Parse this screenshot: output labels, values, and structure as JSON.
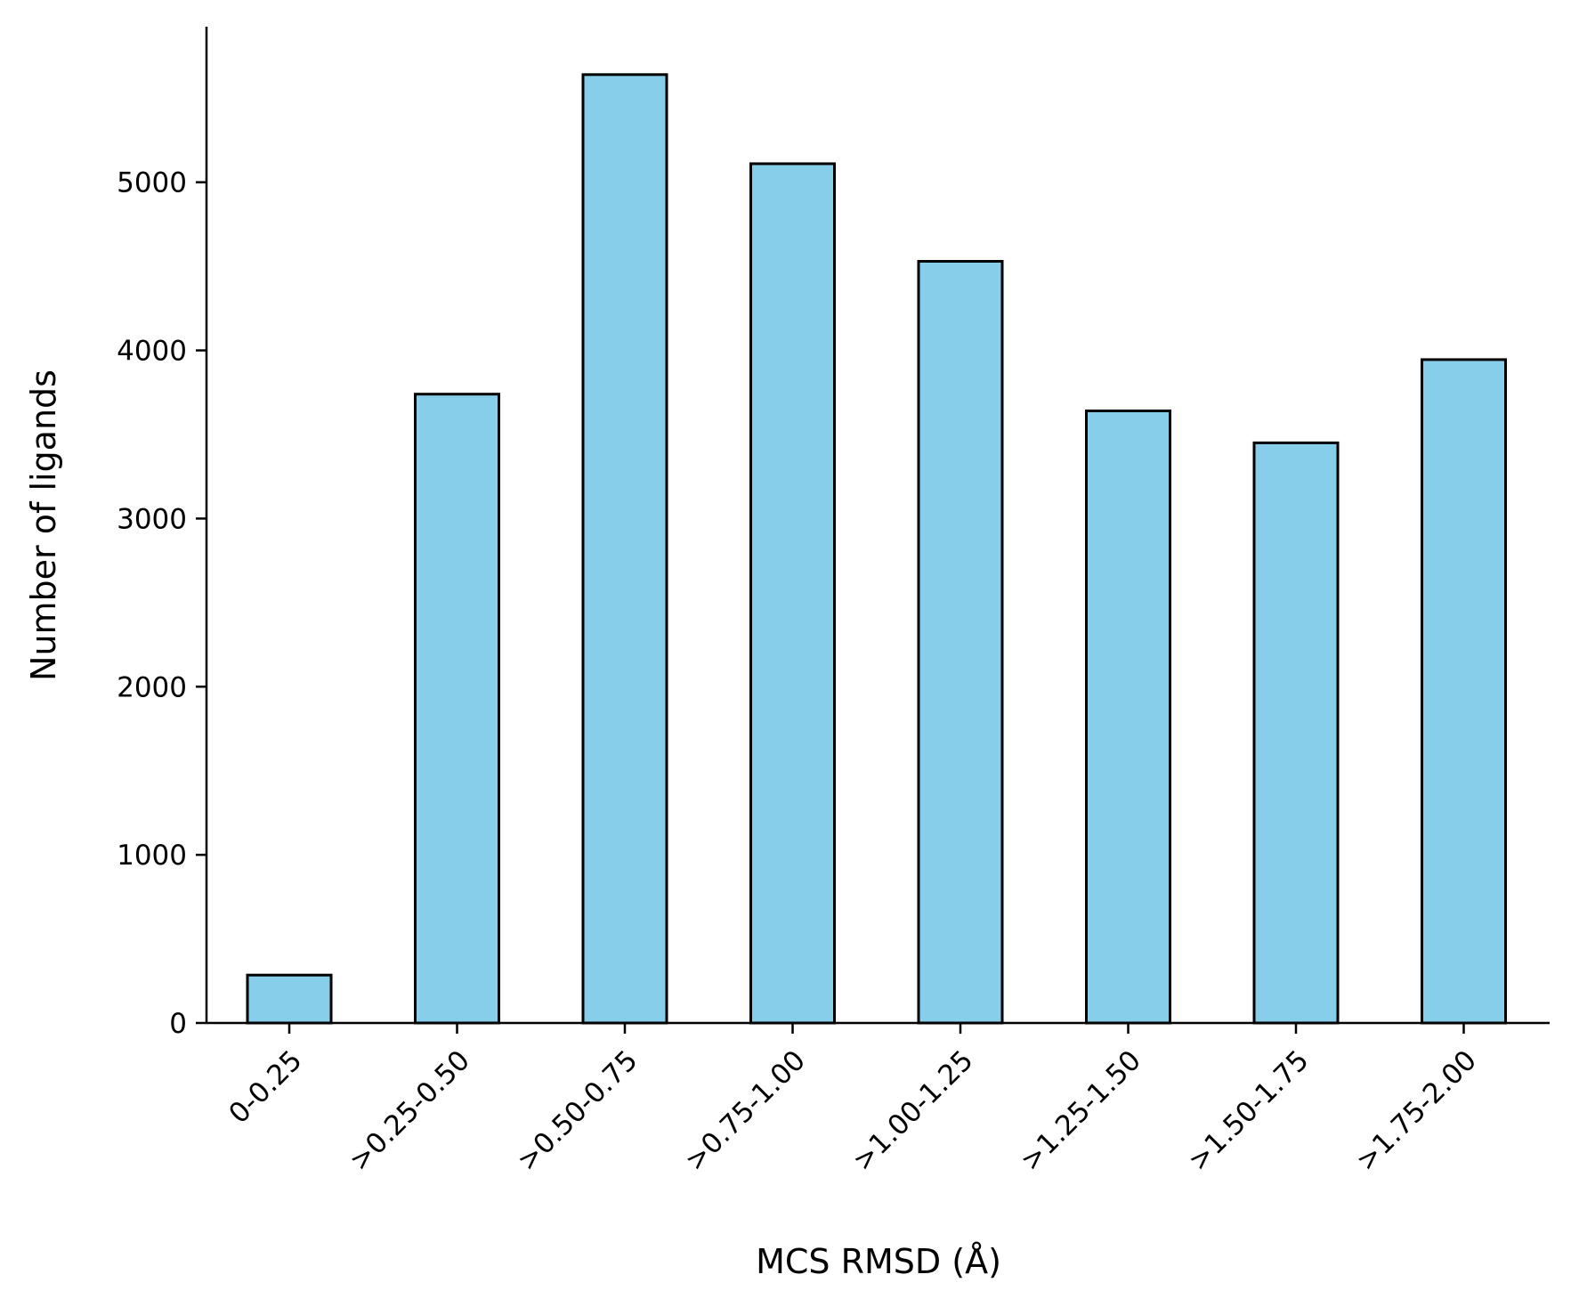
{
  "chart_data": {
    "type": "bar",
    "title": "",
    "xlabel": "MCS RMSD (Å)",
    "ylabel": "Number of ligands",
    "categories": [
      "0-0.25",
      ">0.25-0.50",
      ">0.50-0.75",
      ">0.75-1.00",
      ">1.00-1.25",
      ">1.25-1.50",
      ">1.50-1.75",
      ">1.75-2.00"
    ],
    "values": [
      285,
      3740,
      5640,
      5110,
      4530,
      3640,
      3450,
      3945
    ],
    "yticks": [
      0,
      1000,
      2000,
      3000,
      4000,
      5000
    ],
    "ylim": [
      0,
      5925
    ],
    "grid": false,
    "legend": "none",
    "colors": {
      "bar_fill": "#87CEEB",
      "bar_edge": "#000000",
      "axis": "#000000"
    }
  }
}
